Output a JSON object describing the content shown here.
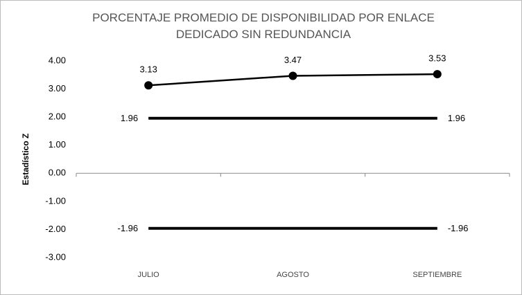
{
  "chart_data": {
    "type": "line",
    "title": "PORCENTAJE PROMEDIO DE DISPONIBILIDAD POR ENLACE DEDICADO SIN REDUNDANCIA",
    "y_label": "Estadístico Z",
    "categories": [
      "JULIO",
      "AGOSTO",
      "SEPTIEMBRE"
    ],
    "series": [
      {
        "color": "#000000",
        "values": [
          3.13,
          3.47,
          3.53
        ],
        "marker": true
      },
      {
        "color": "#000000",
        "values": [
          1.96,
          1.96,
          1.96
        ],
        "marker": false,
        "value_labels": [
          "1.96",
          null,
          "1.96"
        ]
      },
      {
        "color": "#000000",
        "values": [
          -1.96,
          -1.96,
          -1.96
        ],
        "marker": false,
        "value_labels": [
          "-1.96",
          null,
          "-1.96"
        ]
      }
    ],
    "ylim": [
      -3,
      4
    ],
    "yticks": [
      {
        "value": 4,
        "label": "4.00"
      },
      {
        "value": 3,
        "label": "3.00"
      },
      {
        "value": 2,
        "label": "2.00"
      },
      {
        "value": 1,
        "label": "1.00"
      },
      {
        "value": 0,
        "label": "0.00"
      },
      {
        "value": -1,
        "label": "-1.00"
      },
      {
        "value": -2,
        "label": "-2.00"
      },
      {
        "value": -3,
        "label": "-3.00"
      }
    ],
    "grid": false
  }
}
